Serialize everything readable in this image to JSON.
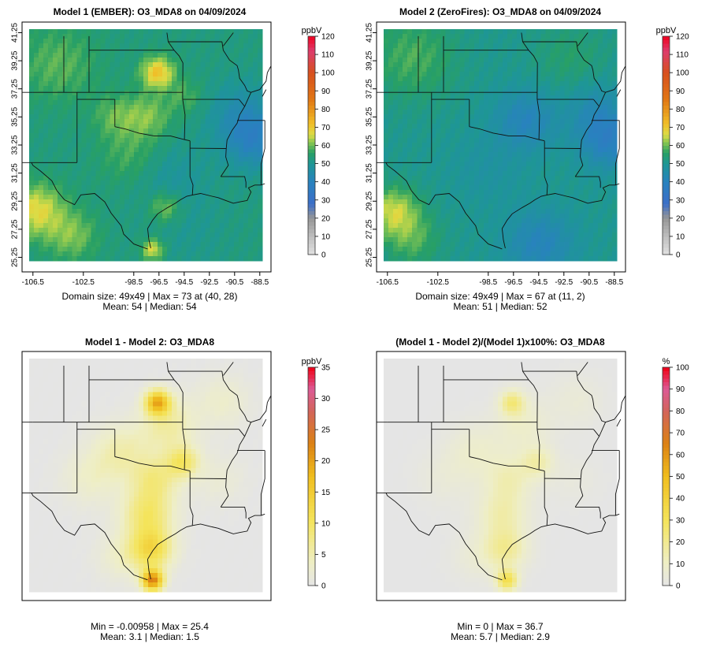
{
  "panels": [
    {
      "id": "model1",
      "title": "Model 1 (EMBER): O3_MDA8 on 04/09/2024",
      "colorbar_unit": "ppbV",
      "colorbar_ticks": [
        0,
        10,
        20,
        30,
        40,
        50,
        60,
        70,
        80,
        90,
        100,
        110,
        120
      ],
      "colorbar_range": [
        0,
        120
      ],
      "colorbar_scheme": "absolute",
      "show_axes": true,
      "x_ticks": [
        "-106.5",
        "-102.5",
        "-98.5",
        "-96.5",
        "-94.5",
        "-92.5",
        "-90.5",
        "-88.5"
      ],
      "y_ticks": [
        "25.25",
        "27.25",
        "29.25",
        "31.25",
        "33.25",
        "35.25",
        "37.25",
        "39.25",
        "41.25"
      ],
      "stats_line1": "Domain size: 49x49 | Max = 73 at (40, 28)",
      "stats_line2": "Mean: 54 |  Median: 54"
    },
    {
      "id": "model2",
      "title": "Model 2 (ZeroFires): O3_MDA8 on 04/09/2024",
      "colorbar_unit": "ppbV",
      "colorbar_ticks": [
        0,
        10,
        20,
        30,
        40,
        50,
        60,
        70,
        80,
        90,
        100,
        110,
        120
      ],
      "colorbar_range": [
        0,
        120
      ],
      "colorbar_scheme": "absolute",
      "show_axes": true,
      "x_ticks": [
        "-106.5",
        "-102.5",
        "-98.5",
        "-96.5",
        "-94.5",
        "-92.5",
        "-90.5",
        "-88.5"
      ],
      "y_ticks": [
        "25.25",
        "27.25",
        "29.25",
        "31.25",
        "33.25",
        "35.25",
        "37.25",
        "39.25",
        "41.25"
      ],
      "stats_line1": "Domain size: 49x49 | Max = 67 at (11, 2)",
      "stats_line2": "Mean: 51 |  Median: 52"
    },
    {
      "id": "diff",
      "title": "Model 1 - Model 2: O3_MDA8",
      "colorbar_unit": "ppbV",
      "colorbar_ticks": [
        0,
        5,
        10,
        15,
        20,
        25,
        30,
        35
      ],
      "colorbar_range": [
        0,
        35
      ],
      "colorbar_scheme": "difference",
      "show_axes": false,
      "stats_line1": "Min = -0.00958 | Max = 25.4",
      "stats_line2": "Mean: 3.1 |  Median: 1.5"
    },
    {
      "id": "pct",
      "title": "(Model 1 - Model 2)/(Model 1)x100%: O3_MDA8",
      "colorbar_unit": "%",
      "colorbar_ticks": [
        0,
        10,
        20,
        30,
        40,
        50,
        60,
        70,
        80,
        90,
        100
      ],
      "colorbar_range": [
        0,
        100
      ],
      "colorbar_scheme": "difference",
      "show_axes": false,
      "stats_line1": "Min = 0 | Max = 36.7",
      "stats_line2": "Mean: 5.7 |  Median: 2.9"
    }
  ],
  "chart_data": [
    {
      "type": "heatmap",
      "title": "Model 1 (EMBER): O3_MDA8 on 04/09/2024",
      "variable": "O3_MDA8",
      "unit": "ppbV",
      "grid": [
        49,
        49
      ],
      "x_range": [
        -106.5,
        -88.5
      ],
      "y_range": [
        25.25,
        41.25
      ],
      "colorbar_range": [
        0,
        120
      ],
      "max": 73,
      "max_at": [
        40,
        28
      ],
      "mean": 54,
      "median": 54,
      "field": {
        "base": 53,
        "spots": [
          {
            "lon": -96.6,
            "lat": 38.4,
            "r": 0.9,
            "amp": 18
          },
          {
            "lon": -106.2,
            "lat": 28.6,
            "r": 1.5,
            "amp": 14
          },
          {
            "lon": -103.4,
            "lat": 26.8,
            "r": 1.4,
            "amp": 8
          },
          {
            "lon": -104.5,
            "lat": 39.0,
            "r": 2.2,
            "amp": 6
          },
          {
            "lon": -96.0,
            "lat": 28.8,
            "r": 0.9,
            "amp": 9
          },
          {
            "lon": -97.0,
            "lat": 25.8,
            "r": 0.6,
            "amp": 14
          },
          {
            "lon": -98.8,
            "lat": 32.5,
            "r": 1.7,
            "amp": 5
          },
          {
            "lon": -97.4,
            "lat": 35.3,
            "r": 1.3,
            "amp": 8
          },
          {
            "lon": -100.0,
            "lat": 35.3,
            "r": 1.2,
            "amp": 6
          },
          {
            "lon": -94.4,
            "lat": 36.7,
            "r": 1.0,
            "amp": 5
          },
          {
            "lon": -89.0,
            "lat": 33.6,
            "r": 1.6,
            "amp": -12
          },
          {
            "lon": -90.0,
            "lat": 35.5,
            "r": 1.8,
            "amp": -7
          },
          {
            "lon": -95.6,
            "lat": 31.0,
            "r": 2.0,
            "amp": -4
          },
          {
            "lon": -94.2,
            "lat": 27.0,
            "r": 2.2,
            "amp": -2
          }
        ]
      }
    },
    {
      "type": "heatmap",
      "title": "Model 2 (ZeroFires): O3_MDA8 on 04/09/2024",
      "variable": "O3_MDA8",
      "unit": "ppbV",
      "grid": [
        49,
        49
      ],
      "x_range": [
        -106.5,
        -88.5
      ],
      "y_range": [
        25.25,
        41.25
      ],
      "colorbar_range": [
        0,
        120
      ],
      "max": 67,
      "max_at": [
        11,
        2
      ],
      "mean": 51,
      "median": 52,
      "field": {
        "base": 51,
        "spots": [
          {
            "lon": -106.0,
            "lat": 28.5,
            "r": 1.4,
            "amp": 14
          },
          {
            "lon": -104.5,
            "lat": 26.5,
            "r": 1.5,
            "amp": 7
          },
          {
            "lon": -104.5,
            "lat": 39.5,
            "r": 2.4,
            "amp": 7
          },
          {
            "lon": -95.5,
            "lat": 35.0,
            "r": 1.7,
            "amp": -10
          },
          {
            "lon": -94.4,
            "lat": 26.2,
            "r": 1.9,
            "amp": -10
          },
          {
            "lon": -89.0,
            "lat": 33.6,
            "r": 1.6,
            "amp": -12
          },
          {
            "lon": -90.0,
            "lat": 35.8,
            "r": 1.6,
            "amp": -6
          },
          {
            "lon": -98.5,
            "lat": 31.5,
            "r": 2.0,
            "amp": -3
          },
          {
            "lon": -92.0,
            "lat": 39.5,
            "r": 2.0,
            "amp": 4
          }
        ]
      }
    },
    {
      "type": "heatmap",
      "title": "Model 1 - Model 2: O3_MDA8",
      "variable": "O3_MDA8",
      "unit": "ppbV",
      "grid": [
        49,
        49
      ],
      "colorbar_range": [
        0,
        35
      ],
      "min": -0.00958,
      "max": 25.4,
      "mean": 3.1,
      "median": 1.5,
      "field": {
        "base": 0,
        "spots": [
          {
            "lon": -96.6,
            "lat": 38.4,
            "r": 0.7,
            "amp": 18
          },
          {
            "lon": -97.0,
            "lat": 25.8,
            "r": 0.6,
            "amp": 22
          },
          {
            "lon": -97.1,
            "lat": 28.0,
            "r": 1.2,
            "amp": 12
          },
          {
            "lon": -97.4,
            "lat": 30.5,
            "r": 1.4,
            "amp": 9
          },
          {
            "lon": -96.8,
            "lat": 33.0,
            "r": 1.3,
            "amp": 7
          },
          {
            "lon": -94.6,
            "lat": 34.2,
            "r": 0.9,
            "amp": 9
          },
          {
            "lon": -99.5,
            "lat": 34.9,
            "r": 1.6,
            "amp": 5
          },
          {
            "lon": -95.8,
            "lat": 36.8,
            "r": 1.5,
            "amp": 6
          },
          {
            "lon": -102.0,
            "lat": 33.0,
            "r": 1.6,
            "amp": 3
          },
          {
            "lon": -99.5,
            "lat": 27.5,
            "r": 1.4,
            "amp": 3
          },
          {
            "lon": -91.5,
            "lat": 38.5,
            "r": 1.5,
            "amp": 3
          },
          {
            "lon": -91.8,
            "lat": 33.0,
            "r": 1.5,
            "amp": 2
          }
        ]
      }
    },
    {
      "type": "heatmap",
      "title": "(Model 1 - Model 2)/(Model 1)x100%: O3_MDA8",
      "variable": "O3_MDA8",
      "unit": "%",
      "grid": [
        49,
        49
      ],
      "colorbar_range": [
        0,
        100
      ],
      "min": 0,
      "max": 36.7,
      "mean": 5.7,
      "median": 2.9,
      "field": {
        "base": 0,
        "spots": [
          {
            "lon": -96.6,
            "lat": 38.4,
            "r": 0.7,
            "amp": 22
          },
          {
            "lon": -97.0,
            "lat": 25.8,
            "r": 0.6,
            "amp": 32
          },
          {
            "lon": -97.1,
            "lat": 28.0,
            "r": 1.2,
            "amp": 18
          },
          {
            "lon": -97.4,
            "lat": 30.5,
            "r": 1.4,
            "amp": 14
          },
          {
            "lon": -96.8,
            "lat": 33.0,
            "r": 1.3,
            "amp": 12
          },
          {
            "lon": -94.6,
            "lat": 34.2,
            "r": 0.9,
            "amp": 14
          },
          {
            "lon": -99.5,
            "lat": 34.9,
            "r": 1.6,
            "amp": 8
          },
          {
            "lon": -95.8,
            "lat": 36.8,
            "r": 1.5,
            "amp": 9
          },
          {
            "lon": -102.0,
            "lat": 33.0,
            "r": 1.6,
            "amp": 4
          },
          {
            "lon": -99.5,
            "lat": 27.5,
            "r": 1.4,
            "amp": 5
          },
          {
            "lon": -91.5,
            "lat": 38.5,
            "r": 1.5,
            "amp": 5
          },
          {
            "lon": -91.8,
            "lat": 33.0,
            "r": 1.5,
            "amp": 3
          }
        ]
      }
    }
  ],
  "map_lines": {
    "state_borders": [
      [
        [
          -104.05,
          41.0
        ],
        [
          -104.05,
          37.0
        ]
      ],
      [
        [
          -102.05,
          41.0
        ],
        [
          -102.05,
          37.0
        ]
      ],
      [
        [
          -103.0,
          37.0
        ],
        [
          -103.0,
          32.0
        ]
      ],
      [
        [
          -106.62,
          32.0
        ],
        [
          -103.0,
          32.0
        ]
      ],
      [
        [
          -103.0,
          36.5
        ],
        [
          -100.0,
          36.5
        ]
      ],
      [
        [
          -100.0,
          36.5
        ],
        [
          -100.0,
          34.56
        ]
      ],
      [
        [
          -100.0,
          34.56
        ],
        [
          -99.2,
          34.4
        ],
        [
          -98.1,
          34.1
        ],
        [
          -96.9,
          33.9
        ],
        [
          -95.6,
          33.9
        ],
        [
          -94.5,
          33.64
        ]
      ],
      [
        [
          -94.04,
          33.55
        ],
        [
          -94.04,
          31.0
        ],
        [
          -93.8,
          30.4
        ],
        [
          -93.85,
          29.7
        ]
      ],
      [
        [
          -106.5,
          37.0
        ],
        [
          -94.62,
          37.0
        ]
      ],
      [
        [
          -102.05,
          40.0
        ],
        [
          -95.3,
          40.0
        ]
      ],
      [
        [
          -94.62,
          37.0
        ],
        [
          -94.62,
          36.5
        ]
      ],
      [
        [
          -94.62,
          36.5
        ],
        [
          -94.43,
          35.4
        ],
        [
          -94.48,
          33.64
        ],
        [
          -94.04,
          33.55
        ]
      ],
      [
        [
          -94.04,
          33.02
        ],
        [
          -91.16,
          33.0
        ]
      ],
      [
        [
          -94.62,
          36.5
        ],
        [
          -90.15,
          36.5
        ]
      ],
      [
        [
          -95.3,
          40.0
        ],
        [
          -95.77,
          40.6
        ],
        [
          -95.87,
          41.25
        ]
      ],
      [
        [
          -95.3,
          40.0
        ],
        [
          -94.9,
          39.6
        ],
        [
          -94.6,
          39.1
        ],
        [
          -94.62,
          37.0
        ]
      ],
      [
        [
          -91.5,
          40.6
        ],
        [
          -95.77,
          40.6
        ]
      ],
      [
        [
          -91.5,
          40.6
        ],
        [
          -91.4,
          40.0
        ],
        [
          -90.9,
          39.3
        ],
        [
          -90.3,
          38.9
        ],
        [
          -90.2,
          38.6
        ],
        [
          -90.1,
          38.0
        ],
        [
          -89.7,
          37.5
        ],
        [
          -89.5,
          37.1
        ],
        [
          -89.2,
          37.0
        ],
        [
          -89.45,
          36.5
        ],
        [
          -89.7,
          36.0
        ],
        [
          -90.1,
          35.4
        ],
        [
          -90.3,
          34.8
        ],
        [
          -90.7,
          34.3
        ],
        [
          -91.1,
          33.6
        ],
        [
          -91.16,
          33.0
        ],
        [
          -91.2,
          32.4
        ],
        [
          -91.0,
          31.8
        ],
        [
          -91.6,
          31.0
        ]
      ],
      [
        [
          -91.6,
          31.0
        ],
        [
          -89.7,
          31.0
        ],
        [
          -89.6,
          30.6
        ],
        [
          -89.6,
          30.2
        ]
      ],
      [
        [
          -90.15,
          36.5
        ],
        [
          -89.7,
          36.0
        ]
      ],
      [
        [
          -88.1,
          35.0
        ],
        [
          -90.3,
          35.0
        ]
      ],
      [
        [
          -88.1,
          35.0
        ],
        [
          -88.1,
          33.0
        ],
        [
          -88.4,
          31.9
        ],
        [
          -88.4,
          30.4
        ]
      ],
      [
        [
          -91.4,
          40.3
        ],
        [
          -90.6,
          41.25
        ]
      ],
      [
        [
          -89.2,
          37.0
        ],
        [
          -88.5,
          37.2
        ],
        [
          -88.0,
          37.8
        ],
        [
          -87.9,
          38.4
        ],
        [
          -87.6,
          38.9
        ],
        [
          -87.5,
          39.5
        ],
        [
          -87.5,
          41.25
        ]
      ]
    ],
    "border_rio_grande": [
      [
        -106.62,
        32.0
      ],
      [
        -106.5,
        31.8
      ],
      [
        -105.9,
        31.4
      ],
      [
        -105.0,
        30.7
      ],
      [
        -104.6,
        30.0
      ],
      [
        -104.0,
        29.35
      ],
      [
        -103.2,
        29.0
      ],
      [
        -102.7,
        29.7
      ],
      [
        -101.6,
        29.8
      ],
      [
        -100.8,
        29.2
      ],
      [
        -100.3,
        28.4
      ],
      [
        -99.5,
        27.5
      ],
      [
        -99.3,
        26.9
      ],
      [
        -98.5,
        26.2
      ],
      [
        -97.4,
        25.85
      ]
    ],
    "coast": [
      [
        -97.15,
        25.9
      ],
      [
        -97.3,
        26.5
      ],
      [
        -97.4,
        27.3
      ],
      [
        -97.0,
        27.9
      ],
      [
        -96.6,
        28.35
      ],
      [
        -95.8,
        28.8
      ],
      [
        -95.2,
        29.1
      ],
      [
        -94.8,
        29.35
      ],
      [
        -94.3,
        29.6
      ],
      [
        -93.8,
        29.7
      ],
      [
        -93.2,
        29.8
      ],
      [
        -92.3,
        29.6
      ],
      [
        -91.8,
        29.5
      ],
      [
        -91.2,
        29.3
      ],
      [
        -90.6,
        29.1
      ],
      [
        -90.1,
        29.2
      ],
      [
        -89.5,
        29.3
      ],
      [
        -89.2,
        29.9
      ],
      [
        -89.4,
        30.2
      ],
      [
        -88.9,
        30.4
      ],
      [
        -88.4,
        30.4
      ],
      [
        -88.1,
        30.5
      ]
    ],
    "mexico_north": [
      [
        -106.5,
        31.8
      ],
      [
        -106.5,
        31.78
      ],
      [
        -108.2,
        31.78
      ]
    ],
    "canada_line": []
  },
  "colors": {
    "background": "#ffffff",
    "frame": "#000000",
    "map_border": "#111111",
    "no_data_gray": "#e5e5e5"
  }
}
